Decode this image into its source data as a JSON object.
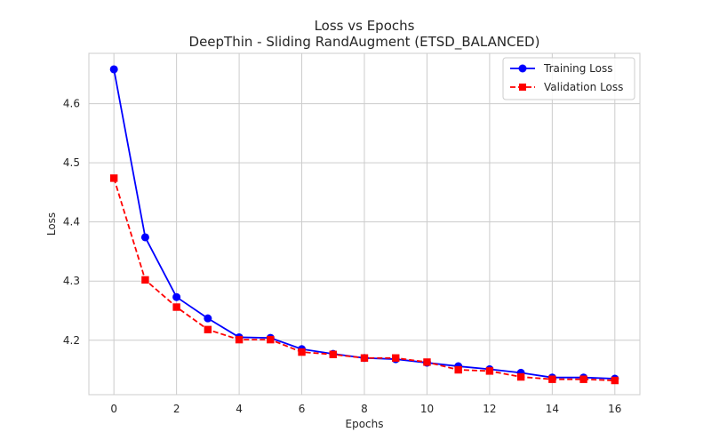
{
  "chart_data": {
    "type": "line",
    "title": "Loss vs Epochs",
    "subtitle": "DeepThin - Sliding RandAugment (ETSD_BALANCED)",
    "xlabel": "Epochs",
    "ylabel": "Loss",
    "xlim": [
      -0.8,
      16.8
    ],
    "ylim": [
      4.108,
      4.685
    ],
    "x_ticks": [
      0,
      2,
      4,
      6,
      8,
      10,
      12,
      14,
      16
    ],
    "y_ticks": [
      4.2,
      4.3,
      4.4,
      4.5,
      4.6
    ],
    "grid": true,
    "legend_position": "top-right",
    "x": [
      0,
      1,
      2,
      3,
      4,
      5,
      6,
      7,
      8,
      9,
      10,
      11,
      12,
      13,
      14,
      15,
      16
    ],
    "series": [
      {
        "name": "Training Loss",
        "color": "#0000ff",
        "line_style": "solid",
        "marker": "circle",
        "values": [
          4.658,
          4.374,
          4.273,
          4.237,
          4.205,
          4.204,
          4.185,
          4.177,
          4.17,
          4.168,
          4.162,
          4.156,
          4.151,
          4.145,
          4.137,
          4.137,
          4.135
        ]
      },
      {
        "name": "Validation Loss",
        "color": "#ff0000",
        "line_style": "dashed",
        "marker": "square",
        "values": [
          4.474,
          4.302,
          4.256,
          4.218,
          4.201,
          4.201,
          4.18,
          4.176,
          4.17,
          4.17,
          4.163,
          4.15,
          4.148,
          4.138,
          4.134,
          4.134,
          4.132
        ]
      }
    ]
  }
}
